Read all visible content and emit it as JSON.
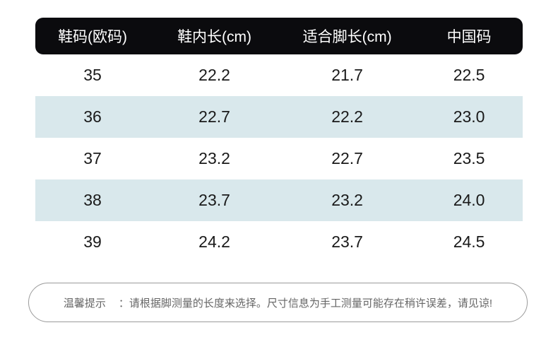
{
  "chart_data": {
    "type": "table",
    "title": "",
    "columns": [
      "鞋码(欧码)",
      "鞋内长(cm)",
      "适合脚长(cm)",
      "中国码"
    ],
    "rows": [
      [
        "35",
        "22.2",
        "21.7",
        "22.5"
      ],
      [
        "36",
        "22.7",
        "22.2",
        "23.0"
      ],
      [
        "37",
        "23.2",
        "22.7",
        "23.5"
      ],
      [
        "38",
        "23.7",
        "23.2",
        "24.0"
      ],
      [
        "39",
        "24.2",
        "23.7",
        "24.5"
      ]
    ],
    "striped_rows": [
      1,
      3
    ],
    "note": "温馨提示 ：请根据脚测量的长度来选择。尺寸信息为手工测量可能存在稍许误差，请见谅!"
  },
  "table": {
    "columns": [
      "鞋码(欧码)",
      "鞋内长(cm)",
      "适合脚长(cm)",
      "中国码"
    ],
    "rows": [
      [
        "35",
        "22.2",
        "21.7",
        "22.5"
      ],
      [
        "36",
        "22.7",
        "22.2",
        "23.0"
      ],
      [
        "37",
        "23.2",
        "22.7",
        "23.5"
      ],
      [
        "38",
        "23.7",
        "23.2",
        "24.0"
      ],
      [
        "39",
        "24.2",
        "23.7",
        "24.5"
      ]
    ]
  },
  "note": {
    "label": "温馨提示",
    "text": "：请根据脚测量的长度来选择。尺寸信息为手工测量可能存在稍许误差，请见谅!"
  },
  "colors": {
    "header_bg": "#0b0b0e",
    "header_text": "#ffffff",
    "stripe_bg": "#d9e8ec",
    "body_text": "#1a1a1a",
    "note_border": "#9a9a9a",
    "note_text": "#666666"
  }
}
